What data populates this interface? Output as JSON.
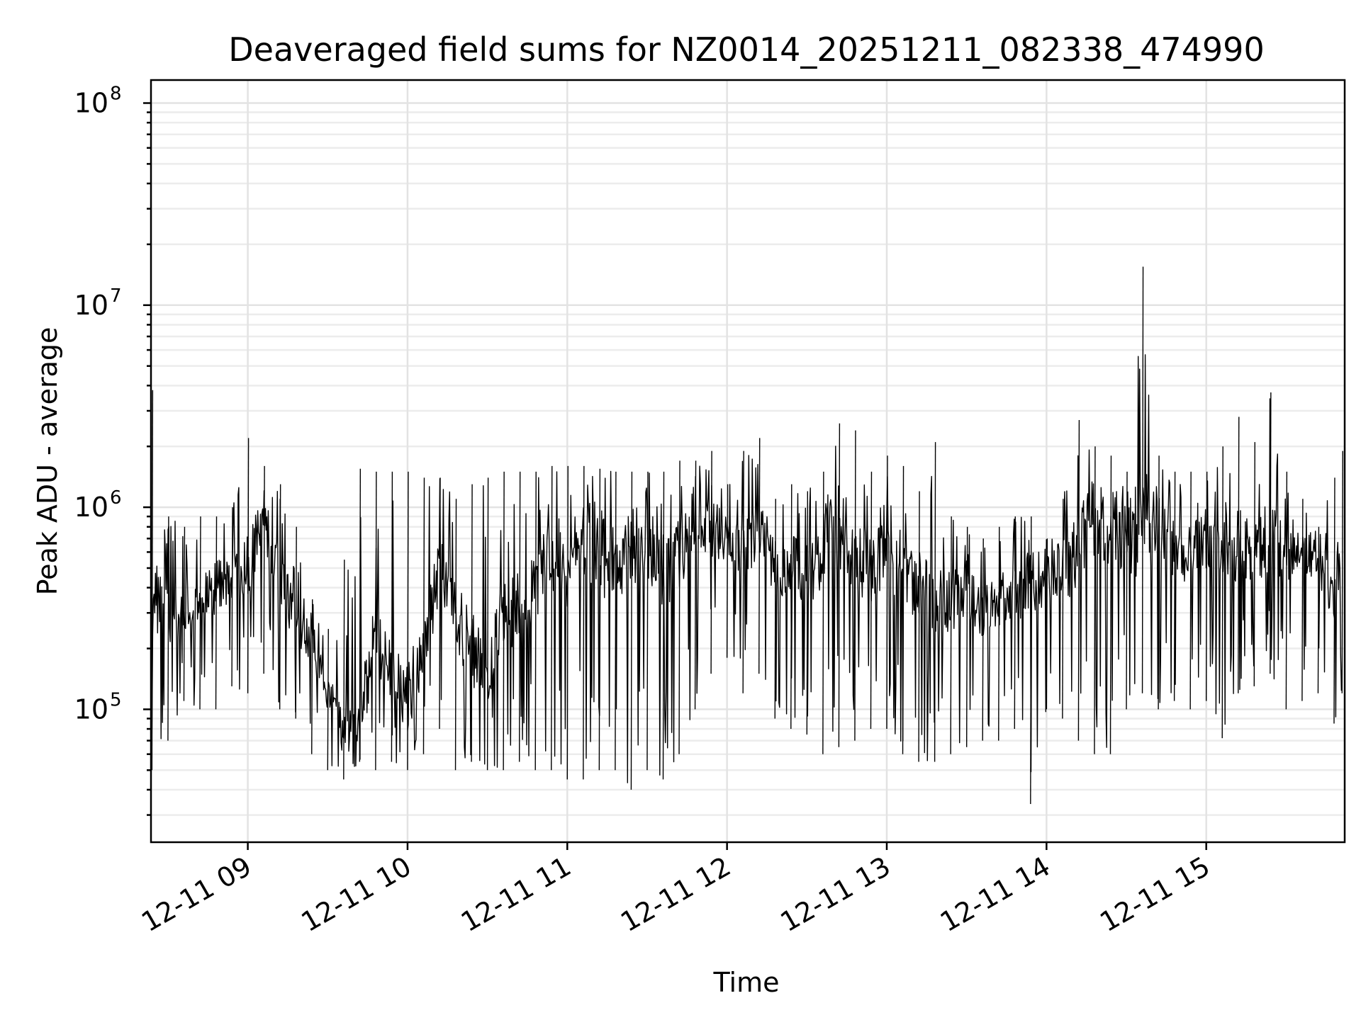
{
  "chart_data": {
    "type": "line",
    "title": "Deaveraged field sums for NZ0014_20251211_082338_474990",
    "xlabel": "Time",
    "ylabel": "Peak ADU - average",
    "y_scale": "log",
    "ylim": [
      22000,
      130000000
    ],
    "xlim": [
      "2025-12-11 08:23:38",
      "2025-12-11 15:52:00"
    ],
    "grid": "major and minor",
    "legend": "none",
    "line_color": "#000000",
    "x_ticks": [
      {
        "time": "2025-12-11 09:00",
        "label": "12-11 09"
      },
      {
        "time": "2025-12-11 10:00",
        "label": "12-11 10"
      },
      {
        "time": "2025-12-11 11:00",
        "label": "12-11 11"
      },
      {
        "time": "2025-12-11 12:00",
        "label": "12-11 12"
      },
      {
        "time": "2025-12-11 13:00",
        "label": "12-11 13"
      },
      {
        "time": "2025-12-11 14:00",
        "label": "12-11 14"
      },
      {
        "time": "2025-12-11 15:00",
        "label": "12-11 15"
      }
    ],
    "y_ticks": [
      {
        "value": 100000,
        "base": "10",
        "exp": "5"
      },
      {
        "value": 1000000,
        "base": "10",
        "exp": "6"
      },
      {
        "value": 10000000,
        "base": "10",
        "exp": "7"
      },
      {
        "value": 100000000,
        "base": "10",
        "exp": "8"
      }
    ],
    "series": [
      {
        "x": [
          "2025-12-11 08:24",
          "2025-12-11 08:30",
          "2025-12-11 08:36",
          "2025-12-11 08:42",
          "2025-12-11 08:48",
          "2025-12-11 08:54",
          "2025-12-11 09:00",
          "2025-12-11 09:06",
          "2025-12-11 09:12",
          "2025-12-11 09:18",
          "2025-12-11 09:24",
          "2025-12-11 09:30",
          "2025-12-11 09:36",
          "2025-12-11 09:42",
          "2025-12-11 09:48",
          "2025-12-11 09:54",
          "2025-12-11 10:00",
          "2025-12-11 10:06",
          "2025-12-11 10:12",
          "2025-12-11 10:18",
          "2025-12-11 10:24",
          "2025-12-11 10:30",
          "2025-12-11 10:36",
          "2025-12-11 10:42",
          "2025-12-11 10:48",
          "2025-12-11 10:54",
          "2025-12-11 11:00",
          "2025-12-11 11:06",
          "2025-12-11 11:12",
          "2025-12-11 11:18",
          "2025-12-11 11:24",
          "2025-12-11 11:30",
          "2025-12-11 11:36",
          "2025-12-11 11:42",
          "2025-12-11 11:48",
          "2025-12-11 11:54",
          "2025-12-11 12:00",
          "2025-12-11 12:06",
          "2025-12-11 12:12",
          "2025-12-11 12:18",
          "2025-12-11 12:24",
          "2025-12-11 12:30",
          "2025-12-11 12:36",
          "2025-12-11 12:42",
          "2025-12-11 12:48",
          "2025-12-11 12:54",
          "2025-12-11 13:00",
          "2025-12-11 13:06",
          "2025-12-11 13:12",
          "2025-12-11 13:18",
          "2025-12-11 13:24",
          "2025-12-11 13:30",
          "2025-12-11 13:36",
          "2025-12-11 13:42",
          "2025-12-11 13:48",
          "2025-12-11 13:54",
          "2025-12-11 14:00",
          "2025-12-11 14:06",
          "2025-12-11 14:12",
          "2025-12-11 14:18",
          "2025-12-11 14:24",
          "2025-12-11 14:30",
          "2025-12-11 14:36",
          "2025-12-11 14:42",
          "2025-12-11 14:48",
          "2025-12-11 14:54",
          "2025-12-11 15:00",
          "2025-12-11 15:06",
          "2025-12-11 15:12",
          "2025-12-11 15:18",
          "2025-12-11 15:24",
          "2025-12-11 15:30",
          "2025-12-11 15:36",
          "2025-12-11 15:42",
          "2025-12-11 15:48",
          "2025-12-11 15:51"
        ],
        "y": [
          400000,
          300000,
          280000,
          350000,
          400000,
          450000,
          500000,
          850000,
          500000,
          250000,
          220000,
          120000,
          80000,
          75000,
          250000,
          150000,
          120000,
          200000,
          500000,
          300000,
          200000,
          150000,
          300000,
          300000,
          400000,
          600000,
          500000,
          700000,
          600000,
          500000,
          600000,
          700000,
          500000,
          600000,
          900000,
          800000,
          700000,
          600000,
          800000,
          500000,
          500000,
          450000,
          600000,
          800000,
          600000,
          500000,
          600000,
          500000,
          400000,
          300000,
          350000,
          400000,
          300000,
          350000,
          400000,
          400000,
          450000,
          500000,
          600000,
          900000,
          800000,
          700000,
          800000,
          900000,
          600000,
          600000,
          700000,
          700000,
          650000,
          600000,
          700000,
          600000,
          650000,
          500000,
          400000,
          700000
        ],
        "y_high": [
          3800000,
          900000,
          800000,
          900000,
          900000,
          1000000,
          2200000,
          1600000,
          1300000,
          800000,
          350000,
          250000,
          550000,
          1550000,
          1500000,
          1500000,
          1500000,
          1400000,
          1400000,
          1100000,
          1300000,
          1400000,
          1500000,
          1500000,
          1500000,
          1600000,
          1600000,
          1600000,
          1550000,
          1500000,
          1500000,
          1500000,
          1500000,
          1700000,
          1700000,
          1900000,
          1300000,
          1900000,
          2200000,
          1100000,
          1300000,
          1200000,
          1500000,
          2600000,
          2400000,
          1500000,
          1800000,
          1600000,
          1200000,
          2100000,
          900000,
          800000,
          700000,
          800000,
          900000,
          900000,
          700000,
          1100000,
          2700000,
          2000000,
          1800000,
          1500000,
          15500000,
          1800000,
          1500000,
          1500000,
          1500000,
          2000000,
          2800000,
          2100000,
          3700000,
          1500000,
          1100000,
          800000,
          1400000,
          1900000
        ],
        "y_low": [
          50000,
          70000,
          110000,
          100000,
          100000,
          130000,
          120000,
          150000,
          100000,
          90000,
          60000,
          50000,
          45000,
          55000,
          50000,
          55000,
          50000,
          60000,
          80000,
          50000,
          55000,
          50000,
          50000,
          55000,
          50000,
          50000,
          45000,
          45000,
          50000,
          50000,
          40000,
          50000,
          45000,
          60000,
          100000,
          150000,
          180000,
          120000,
          150000,
          90000,
          80000,
          75000,
          60000,
          65000,
          70000,
          80000,
          80000,
          60000,
          55000,
          55000,
          60000,
          65000,
          70000,
          70000,
          80000,
          34000,
          100000,
          90000,
          70000,
          60000,
          60000,
          100000,
          120000,
          100000,
          110000,
          100000,
          110000,
          72000,
          120000,
          130000,
          150000,
          100000,
          110000,
          120000,
          85000,
          120000
        ]
      }
    ]
  }
}
